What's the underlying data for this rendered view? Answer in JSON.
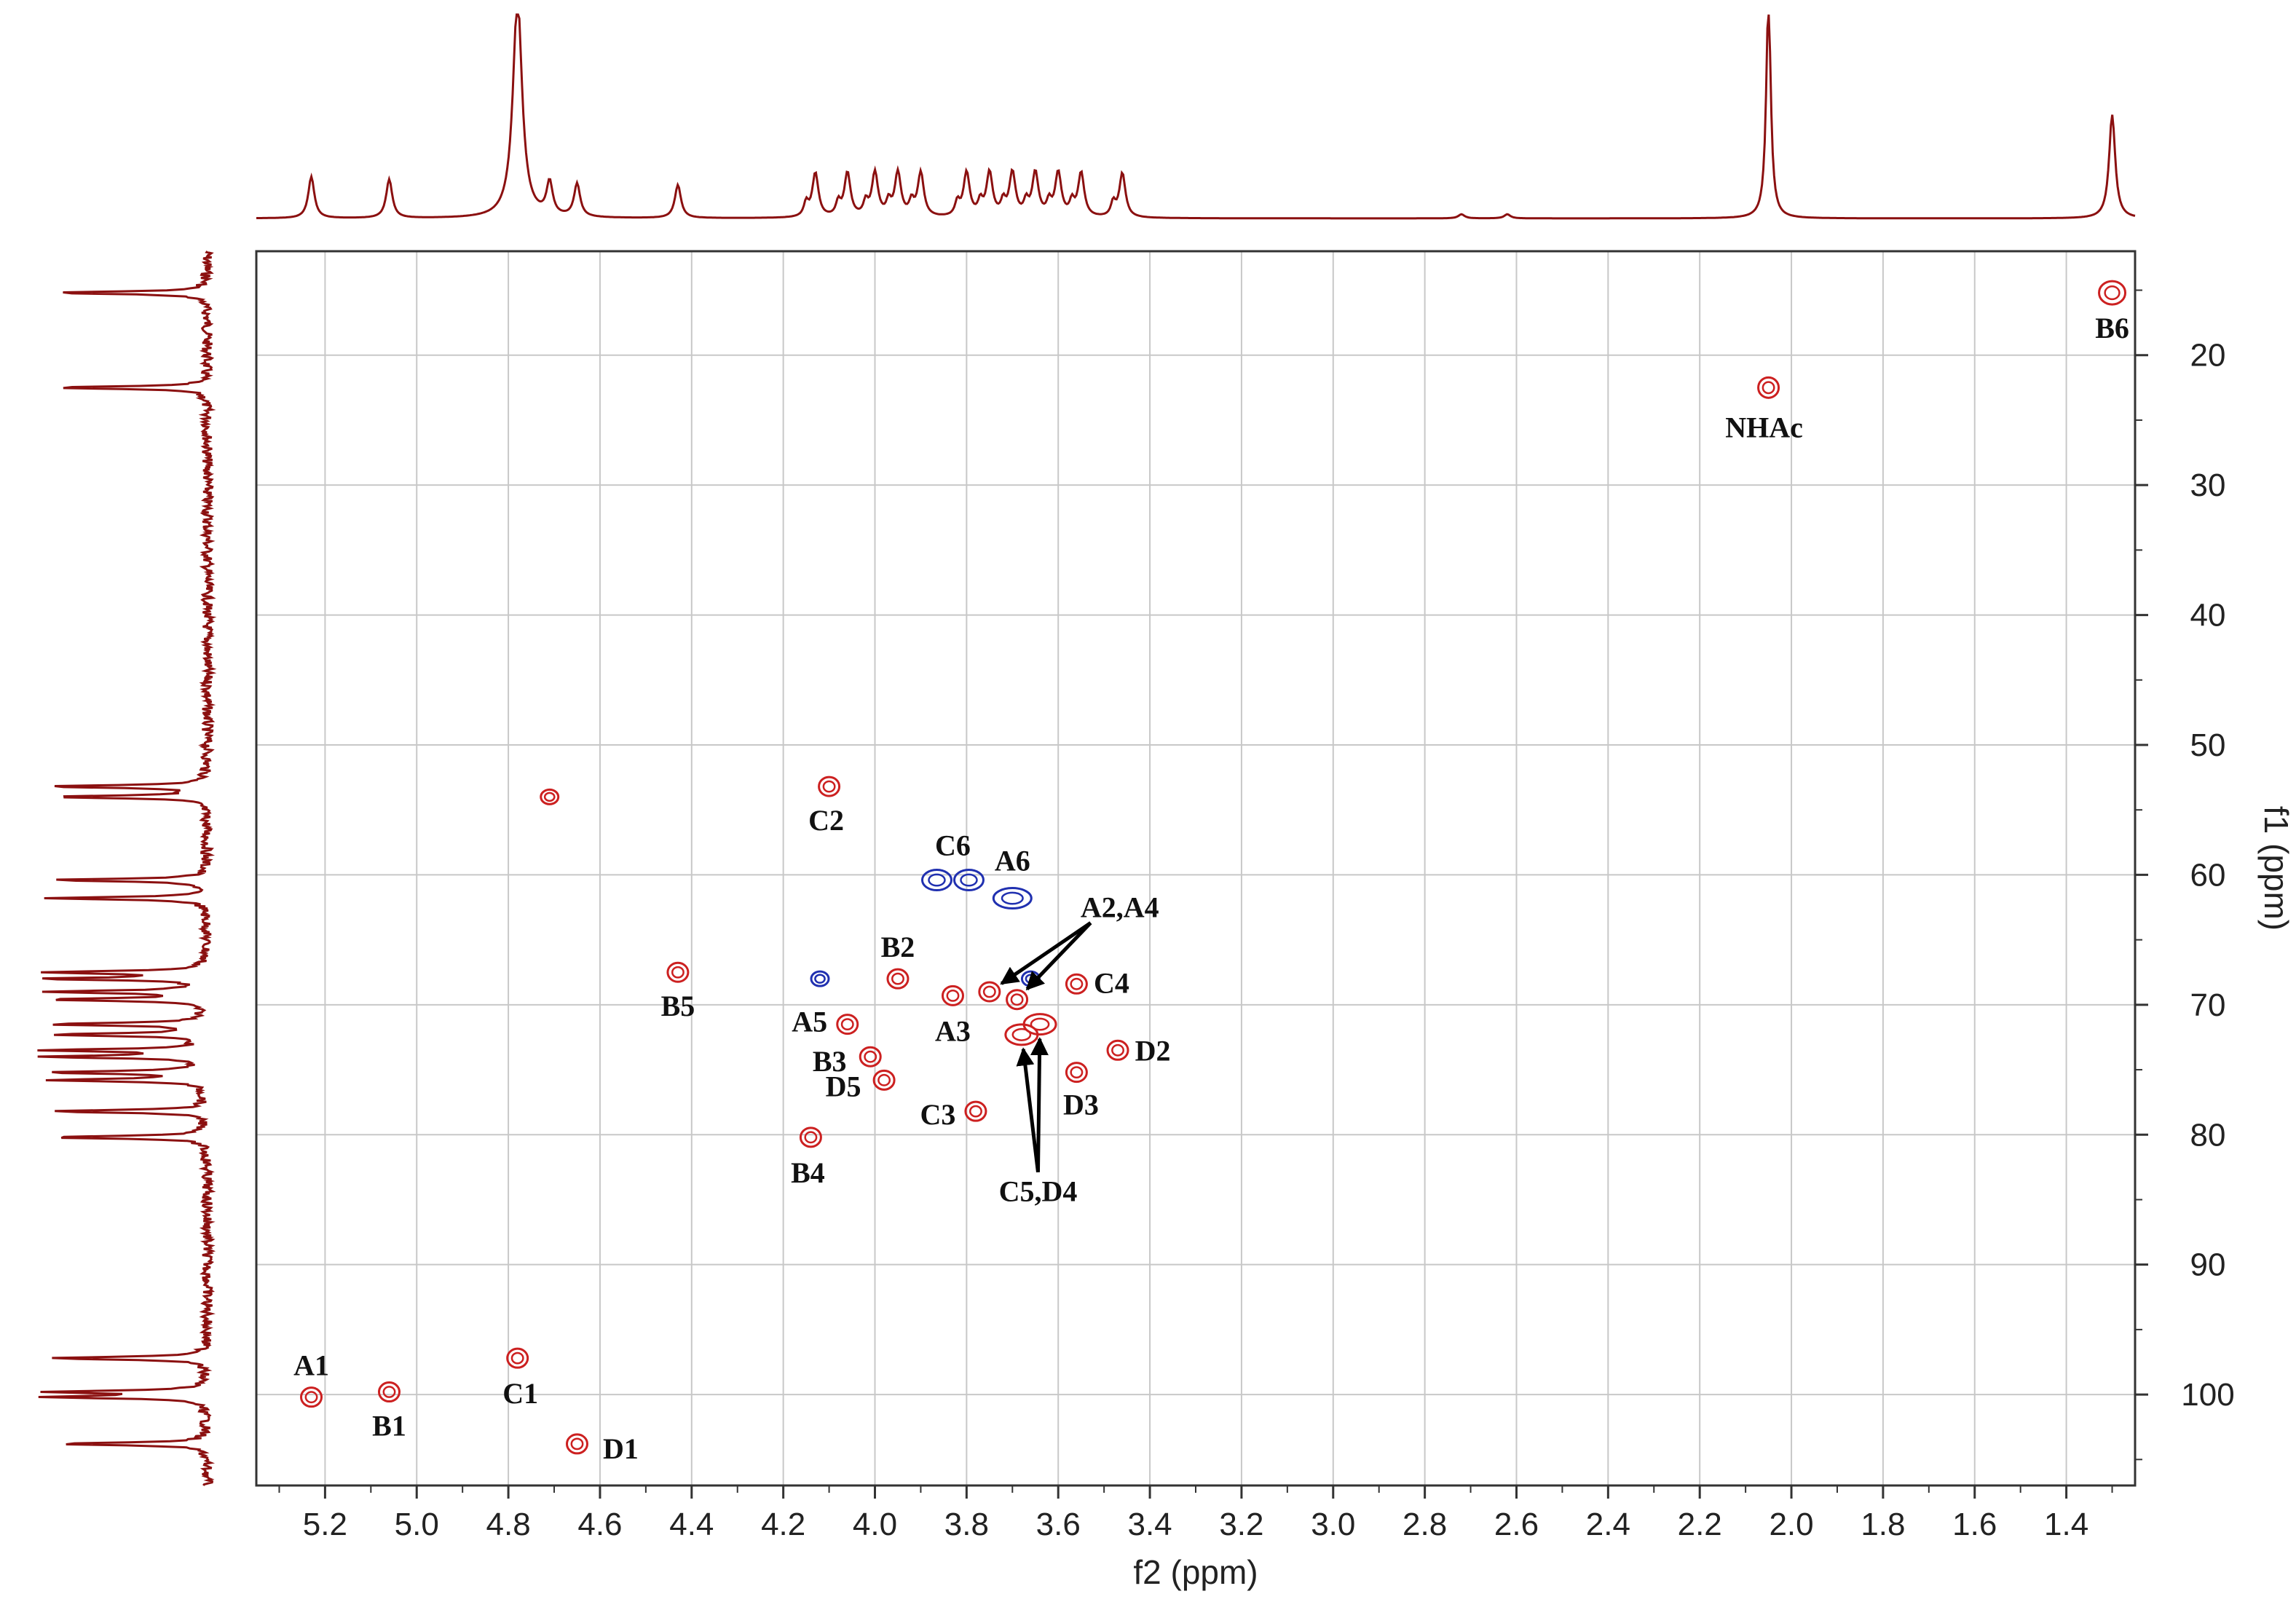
{
  "chart_data": {
    "type": "scatter",
    "title": "",
    "xlabel": "f2 (ppm)",
    "ylabel": "f1 (ppm)",
    "x_reversed": true,
    "y_reversed": true,
    "xlim": [
      5.35,
      1.25
    ],
    "ylim": [
      12,
      107
    ],
    "x_ticks": [
      5.2,
      5.0,
      4.8,
      4.6,
      4.4,
      4.2,
      4.0,
      3.8,
      3.6,
      3.4,
      3.2,
      3.0,
      2.8,
      2.6,
      2.4,
      2.2,
      2.0,
      1.8,
      1.6,
      1.4
    ],
    "x_tick_labels": [
      "5.2",
      "5.0",
      "4.8",
      "4.6",
      "4.4",
      "4.2",
      "4.0",
      "3.8",
      "3.6",
      "3.4",
      "3.2",
      "3.0",
      "2.8",
      "2.6",
      "2.4",
      "2.2",
      "2.0",
      "1.8",
      "1.6",
      "1.4"
    ],
    "y_ticks": [
      20,
      30,
      40,
      50,
      60,
      70,
      80,
      90,
      100
    ],
    "y_tick_labels": [
      "20",
      "30",
      "40",
      "50",
      "60",
      "70",
      "80",
      "90",
      "100"
    ],
    "grid": true,
    "colors": {
      "positive": "#cc2020",
      "negative": "#2030b0",
      "projection": "#8b1010",
      "grid": "#c8c8c8",
      "frame": "#333333"
    },
    "peaks": [
      {
        "label": "A1",
        "x": 5.23,
        "y": 100.2,
        "phase": "positive"
      },
      {
        "label": "B1",
        "x": 5.06,
        "y": 99.8,
        "phase": "positive"
      },
      {
        "label": "C1",
        "x": 4.78,
        "y": 97.2,
        "phase": "positive"
      },
      {
        "label": "D1",
        "x": 4.65,
        "y": 103.8,
        "phase": "positive"
      },
      {
        "label": "",
        "x": 4.71,
        "y": 54.0,
        "phase": "positive"
      },
      {
        "label": "B5",
        "x": 4.43,
        "y": 67.5,
        "phase": "positive"
      },
      {
        "label": "C2",
        "x": 4.1,
        "y": 53.2,
        "phase": "positive"
      },
      {
        "label": "B4",
        "x": 4.14,
        "y": 80.2,
        "phase": "positive"
      },
      {
        "label": "A5",
        "x": 4.06,
        "y": 71.5,
        "phase": "positive"
      },
      {
        "label": "B3",
        "x": 4.01,
        "y": 74.0,
        "phase": "positive"
      },
      {
        "label": "D5",
        "x": 3.98,
        "y": 75.8,
        "phase": "positive"
      },
      {
        "label": "B2",
        "x": 3.95,
        "y": 68.0,
        "phase": "positive"
      },
      {
        "label": "A3",
        "x": 3.83,
        "y": 69.3,
        "phase": "positive"
      },
      {
        "label": "C3",
        "x": 3.78,
        "y": 78.2,
        "phase": "positive"
      },
      {
        "label": "A2",
        "x": 3.75,
        "y": 69.0,
        "phase": "positive"
      },
      {
        "label": "A4",
        "x": 3.69,
        "y": 69.6,
        "phase": "positive"
      },
      {
        "label": "C5",
        "x": 3.68,
        "y": 72.3,
        "phase": "positive"
      },
      {
        "label": "D4",
        "x": 3.64,
        "y": 71.5,
        "phase": "positive"
      },
      {
        "label": "C4",
        "x": 3.56,
        "y": 68.4,
        "phase": "positive"
      },
      {
        "label": "D3",
        "x": 3.56,
        "y": 75.2,
        "phase": "positive"
      },
      {
        "label": "D2",
        "x": 3.47,
        "y": 73.5,
        "phase": "positive"
      },
      {
        "label": "NHAc",
        "x": 2.05,
        "y": 22.5,
        "phase": "positive"
      },
      {
        "label": "B6",
        "x": 1.3,
        "y": 15.2,
        "phase": "positive"
      },
      {
        "label": "C6",
        "x": 3.83,
        "y": 60.4,
        "phase": "negative"
      },
      {
        "label": "A6",
        "x": 3.7,
        "y": 61.8,
        "phase": "negative"
      },
      {
        "label": "",
        "x": 4.12,
        "y": 68.0,
        "phase": "negative"
      },
      {
        "label": "",
        "x": 3.66,
        "y": 68.0,
        "phase": "negative"
      }
    ],
    "annotations": [
      {
        "text": "A2,A4",
        "points_to": [
          "A2",
          "A4"
        ]
      },
      {
        "text": "C5,D4",
        "points_to": [
          "C5",
          "D4"
        ]
      }
    ],
    "projection_f2_peaks_ppm": [
      5.23,
      5.06,
      4.78,
      4.71,
      4.65,
      4.43,
      4.13,
      4.06,
      4.0,
      3.95,
      3.9,
      3.8,
      3.75,
      3.7,
      3.65,
      3.6,
      3.55,
      3.46,
      2.72,
      2.62,
      2.05,
      1.3
    ],
    "projection_f1_peaks_ppm": [
      15.2,
      22.5,
      53.2,
      54.0,
      60.4,
      61.8,
      67.5,
      68.0,
      69.0,
      69.6,
      71.5,
      72.3,
      73.5,
      74.0,
      75.2,
      75.8,
      78.2,
      80.2,
      97.2,
      99.8,
      100.2,
      103.8
    ]
  }
}
